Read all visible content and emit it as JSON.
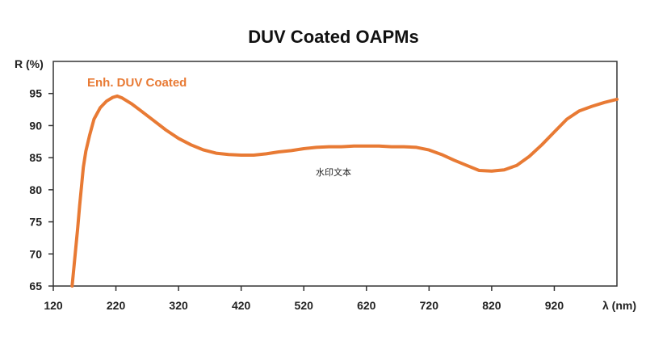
{
  "chart_data": {
    "type": "line",
    "title": "DUV Coated OAPMs",
    "ylabel": "R (%)",
    "xlabel": "λ (nm)",
    "xlim": [
      120,
      1020
    ],
    "ylim": [
      65,
      100
    ],
    "xticks": [
      120,
      220,
      320,
      420,
      520,
      620,
      720,
      820,
      920
    ],
    "yticks": [
      65,
      70,
      75,
      80,
      85,
      90,
      95
    ],
    "grid": false,
    "legend_position": "top-left",
    "annotation": "水印文本",
    "series": [
      {
        "name": "Enh. DUV Coated",
        "color": "#E87A34",
        "x": [
          150,
          153,
          156,
          159,
          162,
          165,
          168,
          172,
          178,
          185,
          195,
          205,
          215,
          222,
          230,
          245,
          260,
          280,
          300,
          320,
          340,
          360,
          380,
          400,
          420,
          440,
          460,
          480,
          500,
          520,
          540,
          560,
          580,
          600,
          620,
          640,
          660,
          680,
          700,
          720,
          740,
          760,
          780,
          800,
          820,
          840,
          860,
          880,
          900,
          920,
          940,
          960,
          980,
          1000,
          1020
        ],
        "y": [
          65,
          68,
          71,
          74,
          77.5,
          80.5,
          83.5,
          86,
          88.5,
          91,
          92.8,
          93.8,
          94.4,
          94.6,
          94.3,
          93.4,
          92.3,
          90.8,
          89.3,
          88,
          87,
          86.2,
          85.7,
          85.5,
          85.4,
          85.4,
          85.6,
          85.9,
          86.1,
          86.4,
          86.6,
          86.7,
          86.7,
          86.8,
          86.8,
          86.8,
          86.7,
          86.7,
          86.6,
          86.2,
          85.5,
          84.6,
          83.8,
          83,
          82.9,
          83.1,
          83.8,
          85.2,
          87,
          89,
          91,
          92.3,
          93,
          93.6,
          94.1
        ]
      }
    ]
  }
}
